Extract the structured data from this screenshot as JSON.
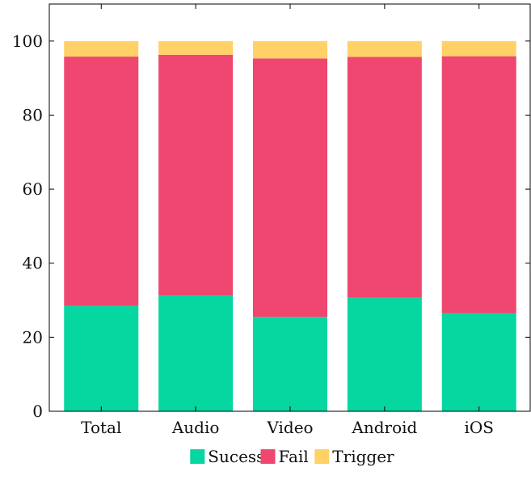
{
  "chart_data": {
    "type": "bar",
    "stacked": true,
    "categories": [
      "Total",
      "Audio",
      "Video",
      "Android",
      "iOS"
    ],
    "series": [
      {
        "name": "Sucess",
        "color": "#06d6a0",
        "values": [
          28.5,
          31.3,
          25.5,
          30.7,
          26.5
        ]
      },
      {
        "name": "Fail",
        "color": "#ef476f",
        "values": [
          67.3,
          65.0,
          69.8,
          65.0,
          69.4
        ]
      },
      {
        "name": "Trigger",
        "color": "#ffd166",
        "values": [
          4.2,
          3.7,
          4.7,
          4.3,
          4.1
        ]
      }
    ],
    "ylim": [
      0,
      110
    ],
    "yticks": [
      0,
      20,
      40,
      60,
      80,
      100
    ],
    "xlabel": "",
    "ylabel": "",
    "title": "",
    "legend_position": "bottom-center",
    "grid": false
  }
}
